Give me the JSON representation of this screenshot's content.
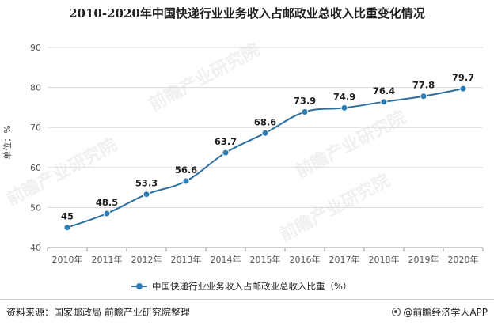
{
  "header": {
    "title": "2010-2020年中国快递行业业务收入占邮政业总收入比重变化情况"
  },
  "chart_data": {
    "type": "line",
    "title": "2010-2020年中国快递行业业务收入占邮政业总收入比重变化情况",
    "xlabel": "",
    "ylabel": "单位：%",
    "categories": [
      "2010年",
      "2011年",
      "2012年",
      "2013年",
      "2014年",
      "2015年",
      "2016年",
      "2017年",
      "2018年",
      "2019年",
      "2020年"
    ],
    "series": [
      {
        "name": "中国快递行业业务收入占邮政业总收入比重（%）",
        "values": [
          45,
          48.5,
          53.3,
          56.6,
          63.7,
          68.6,
          73.9,
          74.9,
          76.4,
          77.8,
          79.7
        ],
        "labels": [
          "45",
          "48.5",
          "53.3",
          "56.6",
          "63.7",
          "68.6",
          "73.9",
          "74.9",
          "76.4",
          "77.8",
          "79.7"
        ]
      }
    ],
    "ylim": [
      40,
      90
    ],
    "yticks": [
      "40",
      "50",
      "60",
      "70",
      "80",
      "90"
    ],
    "grid": true,
    "legend_position": "bottom",
    "colors": {
      "line": "#2b6f9e",
      "marker": "#2b7cb5",
      "grid": "#d9d9d9",
      "axis": "#999999"
    }
  },
  "watermark": {
    "text": "前瞻产业研究院",
    "icon": "qianzhan-logo-icon"
  },
  "footer": {
    "source": "资料来源：国家邮政局 前瞻产业研究院整理",
    "brand": "@前瞻经济学人APP",
    "brand_icon": "qianzhan-logo-icon"
  }
}
